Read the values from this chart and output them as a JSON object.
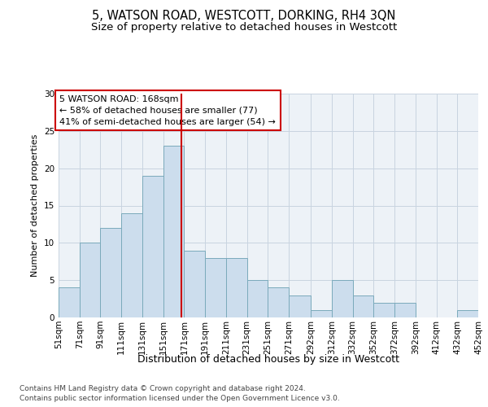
{
  "title1": "5, WATSON ROAD, WESTCOTT, DORKING, RH4 3QN",
  "title2": "Size of property relative to detached houses in Westcott",
  "xlabel": "Distribution of detached houses by size in Westcott",
  "ylabel": "Number of detached properties",
  "footer1": "Contains HM Land Registry data © Crown copyright and database right 2024.",
  "footer2": "Contains public sector information licensed under the Open Government Licence v3.0.",
  "annotation_line1": "5 WATSON ROAD: 168sqm",
  "annotation_line2": "← 58% of detached houses are smaller (77)",
  "annotation_line3": "41% of semi-detached houses are larger (54) →",
  "property_size": 168,
  "bin_edges": [
    51,
    71,
    91,
    111,
    131,
    151,
    171,
    191,
    211,
    231,
    251,
    271,
    292,
    312,
    332,
    352,
    372,
    392,
    412,
    432,
    452
  ],
  "bin_counts": [
    4,
    10,
    12,
    14,
    19,
    23,
    9,
    8,
    8,
    5,
    4,
    3,
    1,
    5,
    3,
    2,
    2,
    0,
    0,
    1
  ],
  "bar_color": "#ccdded",
  "bar_edge_color": "#7aaabb",
  "vline_color": "#cc0000",
  "annotation_box_edge_color": "#cc0000",
  "grid_color": "#c8d4e0",
  "background_color": "#edf2f7",
  "ylim": [
    0,
    30
  ],
  "title1_fontsize": 10.5,
  "title2_fontsize": 9.5,
  "xlabel_fontsize": 9,
  "ylabel_fontsize": 8,
  "tick_fontsize": 7.5,
  "annotation_fontsize": 8,
  "footer_fontsize": 6.5
}
